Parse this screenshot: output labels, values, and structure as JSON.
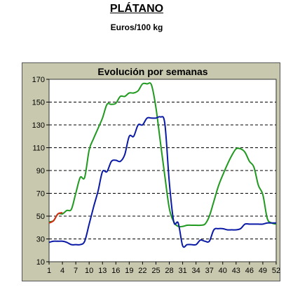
{
  "header": {
    "title": "PLÁTANO",
    "subtitle": "Euros/100 kg"
  },
  "colors": {
    "frame_bg": "#c8c8ae",
    "plot_bg": "#ffffff",
    "series_green": "#1f9a1f",
    "series_blue": "#0a1aa6",
    "series_red": "#d42a12"
  },
  "chart_data": {
    "type": "line",
    "title": "Evolución por semanas",
    "xlabel": "",
    "ylabel": "",
    "xlim": [
      1,
      52
    ],
    "ylim": [
      10,
      170
    ],
    "x_ticks": [
      1,
      4,
      7,
      10,
      13,
      16,
      19,
      22,
      25,
      28,
      31,
      34,
      37,
      40,
      43,
      46,
      49,
      52
    ],
    "y_ticks": [
      10,
      30,
      50,
      70,
      90,
      110,
      130,
      150,
      170
    ],
    "grid": "horizontal-dashed",
    "legend": "none",
    "series": [
      {
        "color": "#1f9a1f",
        "x": [
          1,
          2,
          3,
          4,
          5,
          6,
          7,
          8,
          9,
          10,
          11,
          12,
          13,
          14,
          15,
          16,
          17,
          18,
          19,
          20,
          21,
          22,
          23,
          24,
          25,
          26,
          27,
          28,
          29,
          30,
          31,
          32,
          33,
          34,
          35,
          36,
          37,
          38,
          39,
          40,
          41,
          42,
          43,
          44,
          45,
          46,
          47,
          48,
          49,
          50,
          51,
          52
        ],
        "y": [
          45,
          46,
          52,
          52,
          55,
          56,
          70,
          84,
          84,
          108,
          118,
          127,
          136,
          148,
          148,
          149,
          155,
          155,
          158,
          158,
          160,
          166,
          166,
          165,
          145,
          115,
          85,
          57,
          45,
          41,
          41,
          42,
          42,
          42,
          42,
          43,
          50,
          63,
          76,
          86,
          95,
          103,
          109,
          109,
          106,
          98,
          93,
          77,
          69,
          48,
          44,
          43
        ]
      },
      {
        "color": "#0a1aa6",
        "x": [
          1,
          2,
          3,
          4,
          5,
          6,
          7,
          8,
          9,
          10,
          11,
          12,
          13,
          14,
          15,
          16,
          17,
          18,
          19,
          20,
          21,
          22,
          23,
          24,
          25,
          26,
          27,
          28,
          29,
          30,
          31,
          32,
          33,
          34,
          35,
          36,
          37,
          38,
          39,
          40,
          41,
          42,
          43,
          44,
          45,
          46,
          47,
          48,
          49,
          50,
          51,
          52
        ],
        "y": [
          27,
          28,
          28,
          28,
          27,
          25,
          25,
          25,
          28,
          43,
          58,
          72,
          89,
          89,
          98,
          99,
          98,
          104,
          120,
          120,
          130,
          130,
          136,
          136,
          136,
          137,
          131,
          80,
          45,
          44,
          24,
          25,
          25,
          25,
          29,
          28,
          28,
          38,
          39,
          39,
          38,
          38,
          38,
          39,
          43,
          43,
          43,
          43,
          43,
          44,
          44,
          44
        ]
      },
      {
        "color": "#d42a12",
        "x": [
          1,
          2,
          3,
          4
        ],
        "y": [
          44,
          46,
          52,
          53
        ]
      }
    ]
  }
}
